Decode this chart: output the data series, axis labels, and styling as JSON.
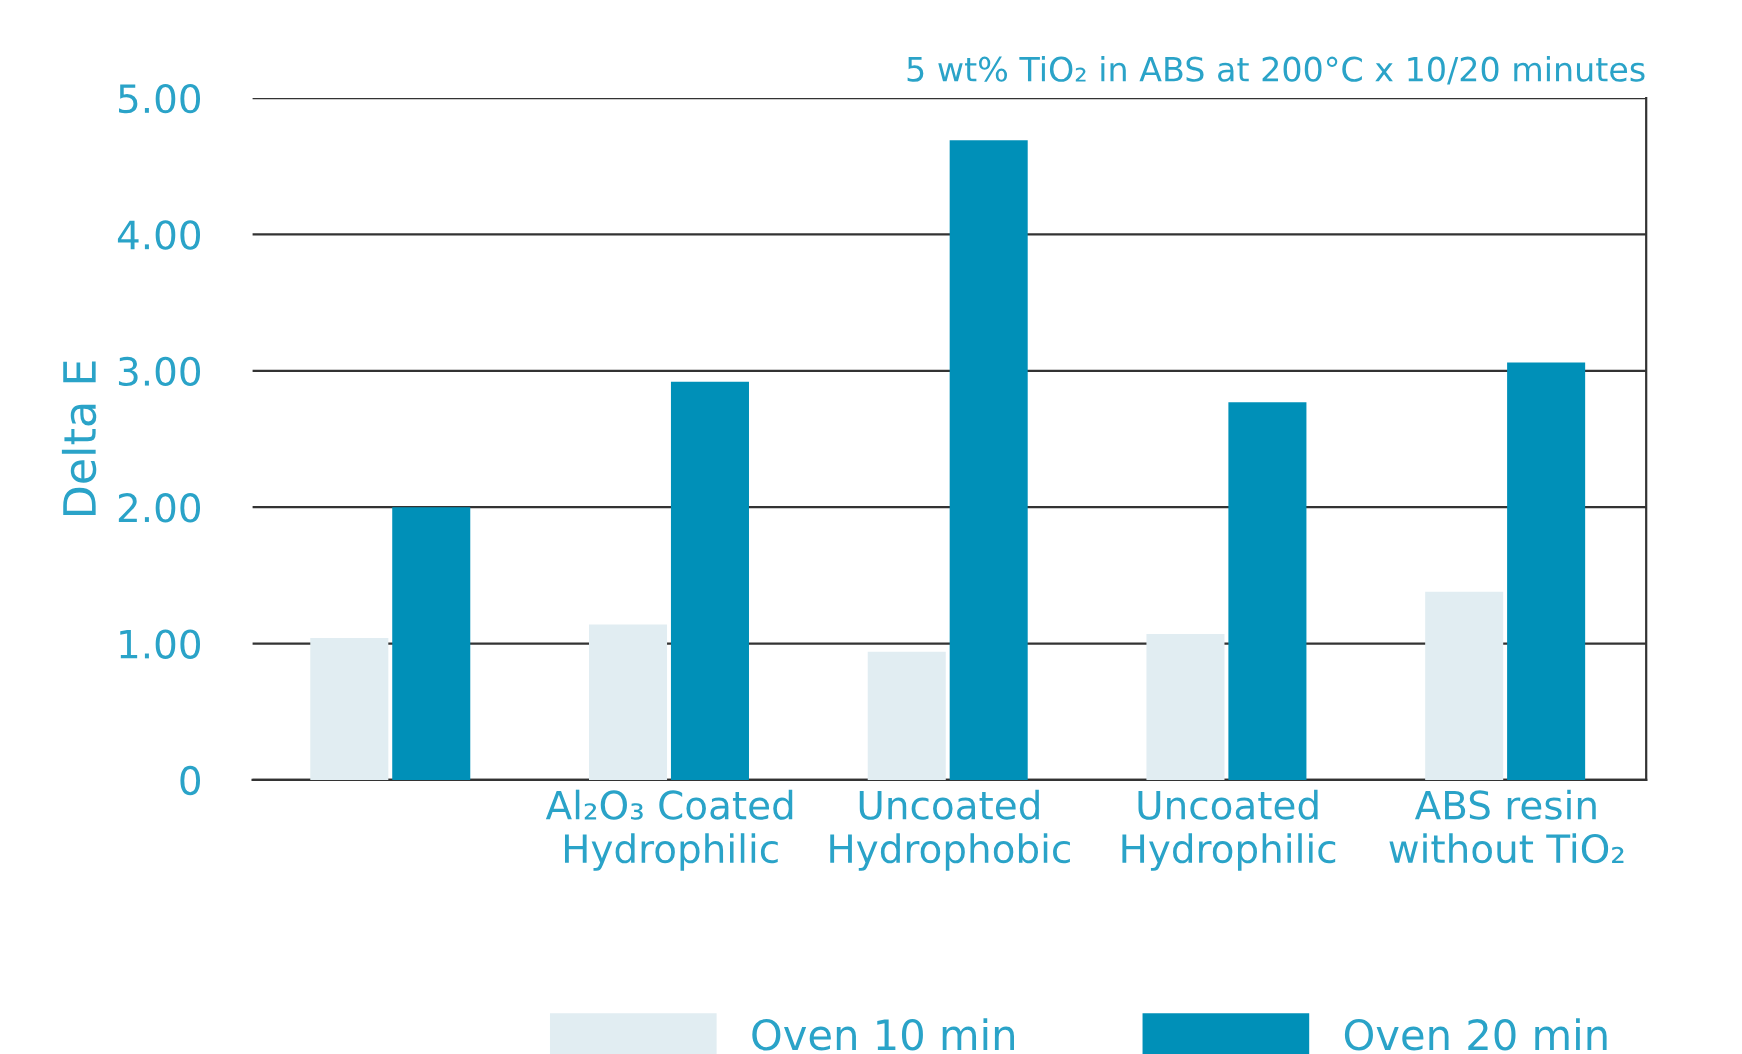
{
  "chart_data": {
    "type": "bar",
    "subtitle": "5 wt% TiO₂ in ABS at 200°C x 10/20 minutes",
    "ylabel": "Delta E",
    "categories": [
      null,
      "Al₂O₃ Coated\nHydrophilic",
      "Uncoated\nHydrophobic",
      "Uncoated\nHydrophilic",
      "ABS resin\nwithout TiO₂"
    ],
    "series": [
      {
        "name": "Oven 10 min",
        "color": "#e1edf2",
        "values": [
          1.04,
          1.14,
          0.94,
          1.07,
          1.38
        ]
      },
      {
        "name": "Oven 20 min",
        "color": "#0090b8",
        "values": [
          2.0,
          2.92,
          4.69,
          2.77,
          3.06
        ]
      }
    ],
    "ylim": [
      0,
      5
    ],
    "yticks": [
      {
        "value": 0,
        "label": "0"
      },
      {
        "value": 1,
        "label": "1.00"
      },
      {
        "value": 2,
        "label": "2.00"
      },
      {
        "value": 3,
        "label": "3.00"
      },
      {
        "value": 4,
        "label": "4.00"
      },
      {
        "value": 5,
        "label": "5.00"
      }
    ],
    "grid": "y",
    "legend": "bottom"
  }
}
